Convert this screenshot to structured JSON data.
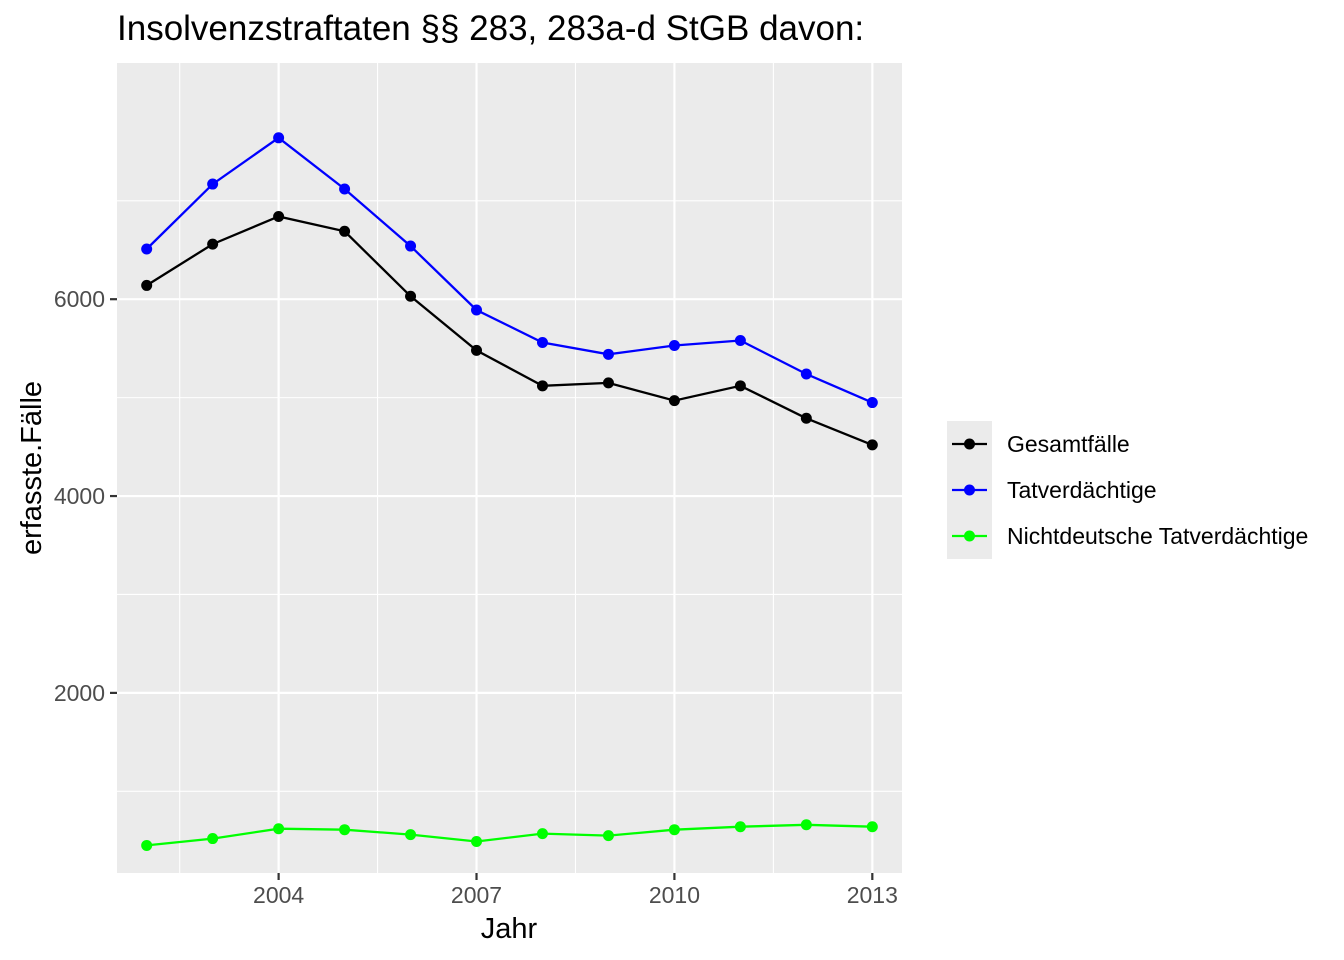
{
  "chart_data": {
    "type": "line",
    "title": "Insolvenzstraftaten §§ 283, 283a-d StGB davon:",
    "xlabel": "Jahr",
    "ylabel": "erfasste.Fälle",
    "xlim": [
      2001.55,
      2013.45
    ],
    "ylim": [
      170,
      8400
    ],
    "x_ticks": [
      2004,
      2007,
      2010,
      2013
    ],
    "x_tick_labels": [
      "2004",
      "2007",
      "2010",
      "2013"
    ],
    "y_ticks": [
      2000,
      4000,
      6000
    ],
    "y_tick_labels": [
      "2000",
      "4000",
      "6000"
    ],
    "grid": true,
    "legend_position": "right",
    "x": [
      2002,
      2003,
      2004,
      2005,
      2006,
      2007,
      2008,
      2009,
      2010,
      2011,
      2012,
      2013
    ],
    "series": [
      {
        "name": "Gesamtfälle",
        "color": "#000000",
        "values": [
          6140,
          6560,
          6840,
          6690,
          6030,
          5480,
          5120,
          5150,
          4970,
          5120,
          4790,
          4520
        ]
      },
      {
        "name": "Tatverdächtige",
        "color": "#0000ff",
        "values": [
          6510,
          7170,
          7640,
          7120,
          6540,
          5890,
          5560,
          5440,
          5530,
          5580,
          5240,
          4950
        ]
      },
      {
        "name": "Nichtdeutsche Tatverdächtige",
        "color": "#00ff00",
        "values": [
          450,
          520,
          620,
          610,
          560,
          490,
          570,
          550,
          610,
          640,
          660,
          640
        ]
      }
    ]
  }
}
